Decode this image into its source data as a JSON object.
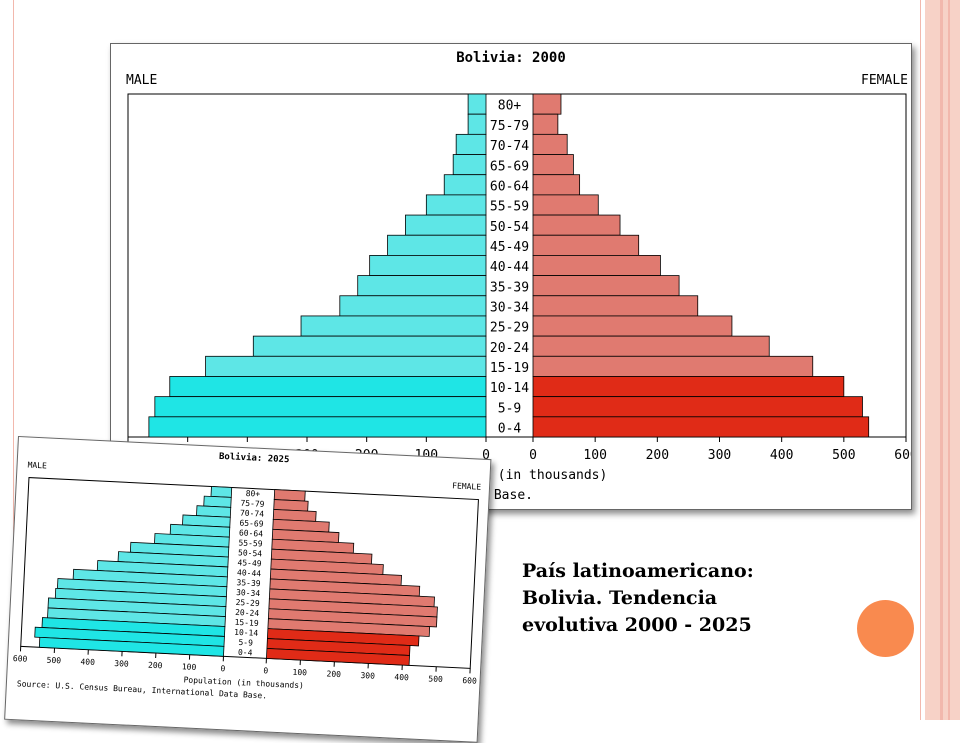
{
  "caption": {
    "line1": "País latinoamericano:",
    "line2": "Bolivia. Tendencia",
    "line3": "evolutiva 2000 - 2025"
  },
  "colors": {
    "male": "#5ee6e6",
    "male_young": "#1fe5e5",
    "female": "#e07a70",
    "female_young": "#e02b17",
    "accent_circle": "#f98a4f"
  },
  "chart_data": [
    {
      "type": "bar",
      "title": "Bolivia: 2000",
      "left_label": "MALE",
      "right_label": "FEMALE",
      "xlabel": "Population (in thousands)",
      "source": "Source: U.S. Census Bureau, International Data Base.",
      "categories": [
        "80+",
        "75-79",
        "70-74",
        "65-69",
        "60-64",
        "55-59",
        "50-54",
        "45-49",
        "40-44",
        "35-39",
        "30-34",
        "25-29",
        "20-24",
        "15-19",
        "10-14",
        "5-9",
        "0-4"
      ],
      "series": [
        {
          "name": "MALE",
          "values": [
            30,
            30,
            50,
            55,
            70,
            100,
            135,
            165,
            195,
            215,
            245,
            310,
            390,
            470,
            530,
            555,
            565
          ]
        },
        {
          "name": "FEMALE",
          "values": [
            45,
            40,
            55,
            65,
            75,
            105,
            140,
            170,
            205,
            235,
            265,
            320,
            380,
            450,
            500,
            530,
            540
          ]
        }
      ],
      "xlim": [
        0,
        600
      ],
      "ticks": [
        0,
        100,
        200,
        300,
        400,
        500,
        600
      ]
    },
    {
      "type": "bar",
      "title": "Bolivia: 2025",
      "left_label": "MALE",
      "right_label": "FEMALE",
      "xlabel": "Population (in thousands)",
      "source": "Source: U.S. Census Bureau, International Data Base.",
      "categories": [
        "80+",
        "75-79",
        "70-74",
        "65-69",
        "60-64",
        "55-59",
        "50-54",
        "45-49",
        "40-44",
        "35-39",
        "30-34",
        "25-29",
        "20-24",
        "15-19",
        "10-14",
        "5-9",
        "0-4"
      ],
      "series": [
        {
          "name": "MALE",
          "values": [
            60,
            80,
            100,
            140,
            175,
            220,
            290,
            325,
            385,
            455,
            500,
            505,
            525,
            525,
            540,
            560,
            545
          ]
        },
        {
          "name": "FEMALE",
          "values": [
            90,
            100,
            125,
            165,
            195,
            240,
            295,
            330,
            385,
            440,
            485,
            495,
            495,
            475,
            445,
            420,
            420
          ]
        }
      ],
      "xlim": [
        0,
        600
      ],
      "ticks": [
        0,
        100,
        200,
        300,
        400,
        500,
        600
      ]
    }
  ]
}
